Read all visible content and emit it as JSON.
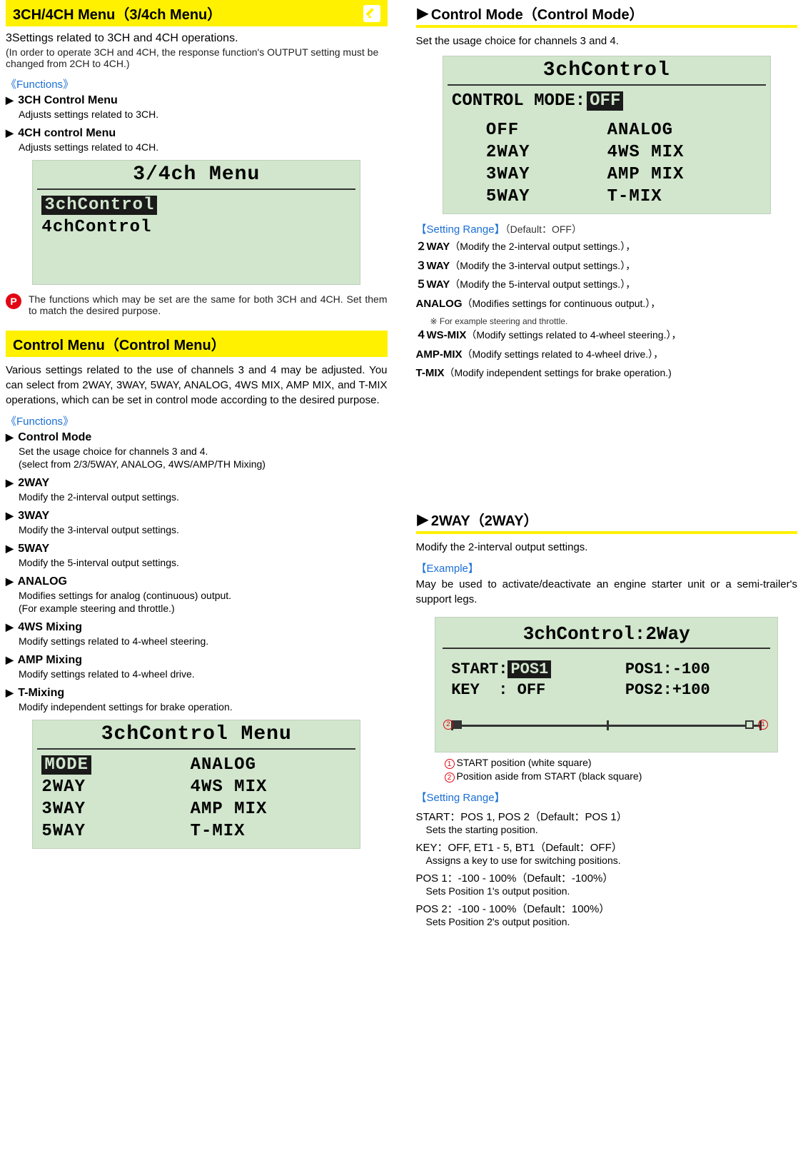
{
  "left": {
    "section1": {
      "title": "3CH/4CH Menu（3/4ch Menu）",
      "intro": "3Settings related to 3CH and 4CH operations.",
      "intro_note": "(In order to operate 3CH and 4CH, the response function's OUTPUT setting must be changed from 2CH to 4CH.)",
      "functions_label": "Functions",
      "fn1_title": "3CH Control Menu",
      "fn1_desc": "Adjusts settings related to 3CH.",
      "fn2_title": "4CH control Menu",
      "fn2_desc": "Adjusts settings related to 4CH.",
      "lcd": {
        "header": "3/4ch Menu",
        "row1": "3chControl",
        "row2": "4chControl"
      },
      "p_note": "The functions which may be set are the same for both 3CH and 4CH. Set them to match the desired purpose."
    },
    "section2": {
      "title": "Control Menu（Control Menu）",
      "intro": "Various settings related to the use of channels 3 and 4 may be adjusted. You can select from 2WAY, 3WAY, 5WAY, ANALOG, 4WS MIX, AMP MIX, and T-MIX operations, which can be set in control mode according to the desired purpose.",
      "functions_label": "Functions",
      "items": [
        {
          "t": "Control Mode",
          "d1": "Set the usage choice for channels 3 and 4.",
          "d2": "(select from 2/3/5WAY, ANALOG, 4WS/AMP/TH Mixing)"
        },
        {
          "t": "2WAY",
          "d1": "Modify the 2-interval output settings."
        },
        {
          "t": "3WAY",
          "d1": "Modify the 3-interval output settings."
        },
        {
          "t": "5WAY",
          "d1": "Modify the 5-interval output settings."
        },
        {
          "t": "ANALOG",
          "d1": "Modifies settings for analog (continuous) output.",
          "d2": "(For example steering and throttle.)"
        },
        {
          "t": "4WS Mixing",
          "d1": "Modify settings related to 4-wheel steering."
        },
        {
          "t": "AMP Mixing",
          "d1": "Modify settings related to 4-wheel drive."
        },
        {
          "t": "T-Mixing",
          "d1": "Modify independent settings for brake operation."
        }
      ],
      "lcd": {
        "header": "3chControl Menu",
        "grid": [
          [
            "MODE",
            "ANALOG"
          ],
          [
            "2WAY",
            "4WS MIX"
          ],
          [
            "3WAY",
            "AMP MIX"
          ],
          [
            "5WAY",
            "T-MIX"
          ]
        ]
      }
    }
  },
  "right": {
    "section1": {
      "title": "Control Mode（Control Mode）",
      "intro": "Set the usage choice for channels 3 and 4.",
      "lcd": {
        "header": "3chControl",
        "mode_label": "CONTROL MODE:",
        "mode_value": "OFF",
        "grid": [
          [
            "OFF",
            "ANALOG"
          ],
          [
            "2WAY",
            "4WS MIX"
          ],
          [
            "3WAY",
            "AMP MIX"
          ],
          [
            "5WAY",
            "T-MIX"
          ]
        ]
      },
      "setting_range_label": "Setting Range",
      "default_text": "（Default：OFF）",
      "ranges": [
        {
          "n": "２WAY",
          "d": "（Modify the 2-interval output settings.），"
        },
        {
          "n": "３WAY",
          "d": "（Modify the 3-interval output settings.），"
        },
        {
          "n": "５WAY",
          "d": "（Modify the 5-interval output settings.），"
        },
        {
          "n": "ANALOG",
          "d": "（Modifies settings for continuous output.），",
          "sub": "※ For example steering and throttle."
        },
        {
          "n": "４WS-MIX",
          "d": "（Modify settings related to 4-wheel steering.），"
        },
        {
          "n": "AMP-MIX",
          "d": "（Modify settings related to 4-wheel drive.），"
        },
        {
          "n": "T-MIX",
          "d": "（Modify independent settings for brake operation.)"
        }
      ]
    },
    "section2": {
      "title": "2WAY（2WAY）",
      "intro": "Modify the 2-interval output settings.",
      "example_label": "Example",
      "example_text": "May be used to activate/deactivate an engine starter unit or a semi-trailer's support legs.",
      "lcd": {
        "header": "3chControl:2Way",
        "l1a": "START:",
        "l1a_val": "POS1",
        "l1b": "POS1:-100",
        "l2a": "KEY  : OFF",
        "l2b": "POS2:+100",
        "marker_open_pct": 96,
        "marker_solid_pct": 2,
        "tick_mid_pct": 50
      },
      "legend1": "START position (white square)",
      "legend2": "Position aside from START (black square)",
      "setting_range_label": "Setting Range",
      "settings": [
        {
          "s": "START：POS 1, POS 2（Default：POS 1）",
          "d": "Sets the starting position."
        },
        {
          "s": "KEY：OFF, ET1 - 5, BT1（Default：OFF）",
          "d": "Assigns a key to use for switching positions."
        },
        {
          "s": "POS 1：-100 - 100%（Default：-100%）",
          "d": "Sets Position 1's output position."
        },
        {
          "s": "POS 2：-100 - 100%（Default：100%）",
          "d": "Sets Position 2's output position."
        }
      ]
    }
  },
  "colors": {
    "yellow": "#fff100",
    "blue": "#1a6fd6",
    "red": "#e30613",
    "lcd_bg": "#d1e6cd",
    "lcd_fg": "#1a1a1a"
  }
}
